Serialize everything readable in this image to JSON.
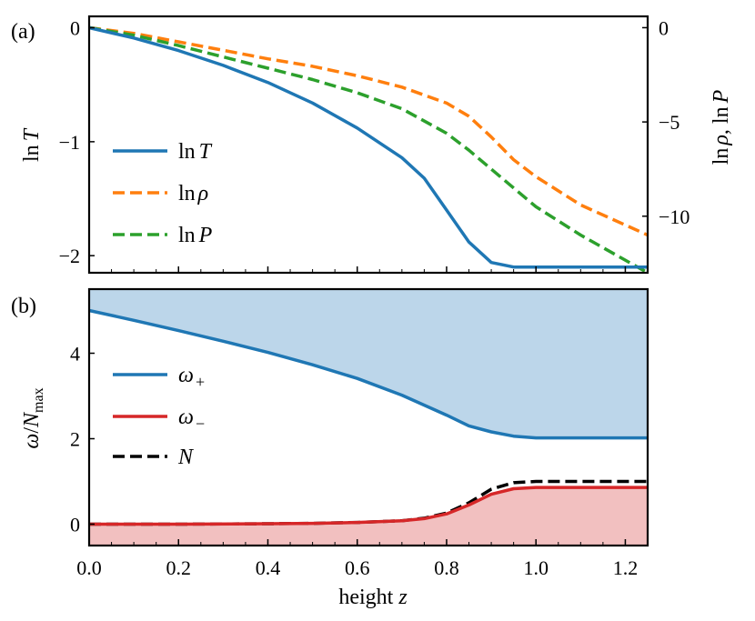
{
  "chart_data": [
    {
      "panel_label": "(a)",
      "type": "line",
      "xlabel": "",
      "ylabel_left": {
        "text": "ln",
        "var": "T"
      },
      "ylabel_right": {
        "a": "ln",
        "b": "ρ",
        "c": ", ln",
        "d": "P"
      },
      "xlim": [
        0.0,
        1.25
      ],
      "ylim_left": [
        -2.15,
        0.1
      ],
      "ylim_right": [
        -13.0,
        0.6
      ],
      "yticks_left": [
        0,
        -1,
        -2
      ],
      "yticks_left_labels": [
        "0",
        "−1",
        "−2"
      ],
      "yticks_right": [
        0,
        -5,
        -10
      ],
      "yticks_right_labels": [
        "0",
        "−5",
        "−10"
      ],
      "legend_position": "center-left",
      "series": [
        {
          "name": "lnT",
          "label_prefix": "ln",
          "label_var": "T",
          "axis": "left",
          "color": "#1f77b4",
          "style": "solid",
          "x": [
            0,
            0.1,
            0.2,
            0.3,
            0.4,
            0.5,
            0.6,
            0.7,
            0.75,
            0.8,
            0.85,
            0.9,
            0.95,
            1.0,
            1.1,
            1.25
          ],
          "y": [
            0,
            -0.09,
            -0.2,
            -0.33,
            -0.48,
            -0.66,
            -0.88,
            -1.14,
            -1.32,
            -1.6,
            -1.88,
            -2.06,
            -2.1,
            -2.1,
            -2.1,
            -2.1
          ]
        },
        {
          "name": "lnrho",
          "label_prefix": "ln",
          "label_var": "ρ",
          "axis": "right",
          "color": "#ff7f0e",
          "style": "dashed",
          "x": [
            0,
            0.1,
            0.2,
            0.3,
            0.4,
            0.5,
            0.6,
            0.7,
            0.8,
            0.85,
            0.9,
            0.95,
            1.0,
            1.1,
            1.25
          ],
          "y": [
            0,
            -0.3,
            -0.75,
            -1.2,
            -1.65,
            -2.05,
            -2.55,
            -3.15,
            -4.0,
            -4.7,
            -5.8,
            -7.0,
            -7.9,
            -9.4,
            -11.0
          ]
        },
        {
          "name": "lnP",
          "label_prefix": "ln",
          "label_var": "P",
          "axis": "right",
          "color": "#2ca02c",
          "style": "dashed",
          "x": [
            0,
            0.1,
            0.2,
            0.3,
            0.4,
            0.5,
            0.6,
            0.7,
            0.8,
            0.85,
            0.9,
            0.95,
            1.0,
            1.1,
            1.25
          ],
          "y": [
            0,
            -0.4,
            -0.95,
            -1.55,
            -2.15,
            -2.75,
            -3.45,
            -4.3,
            -5.6,
            -6.5,
            -7.5,
            -8.5,
            -9.5,
            -11.0,
            -13.0
          ]
        }
      ]
    },
    {
      "panel_label": "(b)",
      "type": "area",
      "xlabel": {
        "text": "height",
        "var": "z"
      },
      "ylabel": {
        "a": "ω",
        "b": "/",
        "c": "N",
        "d": "max"
      },
      "xlim": [
        0.0,
        1.25
      ],
      "ylim": [
        -0.5,
        5.5
      ],
      "xticks": [
        0.0,
        0.2,
        0.4,
        0.6,
        0.8,
        1.0,
        1.2
      ],
      "xtick_labels": [
        "0.0",
        "0.2",
        "0.4",
        "0.6",
        "0.8",
        "1.0",
        "1.2"
      ],
      "yticks": [
        0,
        2,
        4
      ],
      "ytick_labels": [
        "0",
        "2",
        "4"
      ],
      "legend_position": "center-left",
      "fill_upper_color": "#bcd6ea",
      "fill_lower_color": "#f2c0c0",
      "series": [
        {
          "name": "omega_plus",
          "label_main": "ω",
          "label_sub": "+",
          "color": "#1f77b4",
          "style": "solid",
          "x": [
            0,
            0.1,
            0.2,
            0.3,
            0.4,
            0.5,
            0.6,
            0.7,
            0.8,
            0.85,
            0.9,
            0.95,
            1.0,
            1.25
          ],
          "y": [
            5.0,
            4.77,
            4.53,
            4.28,
            4.02,
            3.73,
            3.41,
            3.02,
            2.55,
            2.3,
            2.16,
            2.06,
            2.02,
            2.02
          ]
        },
        {
          "name": "omega_minus",
          "label_main": "ω",
          "label_sub": "−",
          "color": "#d62728",
          "style": "solid",
          "x": [
            0,
            0.2,
            0.4,
            0.5,
            0.6,
            0.7,
            0.75,
            0.8,
            0.85,
            0.9,
            0.95,
            1.0,
            1.25
          ],
          "y": [
            0,
            0,
            0.01,
            0.02,
            0.04,
            0.08,
            0.13,
            0.24,
            0.45,
            0.7,
            0.83,
            0.86,
            0.86
          ]
        },
        {
          "name": "N",
          "label_main": "N",
          "label_sub": "",
          "color": "#000000",
          "style": "dashed",
          "x": [
            0,
            0.2,
            0.4,
            0.5,
            0.6,
            0.7,
            0.75,
            0.8,
            0.85,
            0.9,
            0.95,
            1.0,
            1.25
          ],
          "y": [
            0,
            0,
            0.01,
            0.02,
            0.04,
            0.08,
            0.14,
            0.26,
            0.5,
            0.82,
            0.97,
            1.0,
            1.0
          ]
        }
      ]
    }
  ]
}
